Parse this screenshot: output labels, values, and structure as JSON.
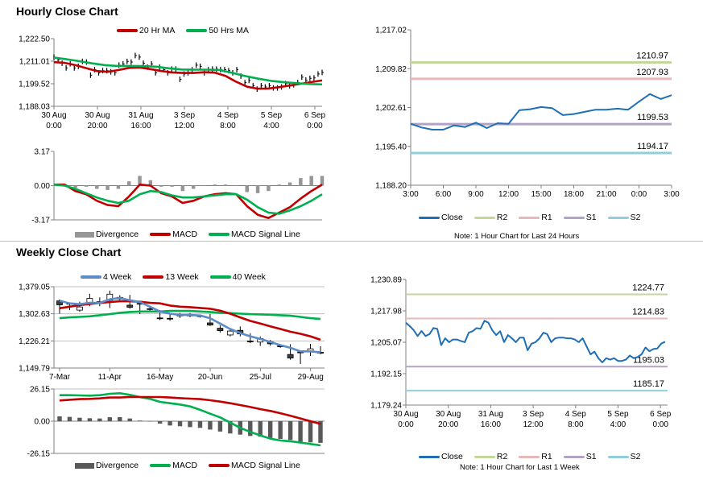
{
  "sections": {
    "hourly_title": "Hourly Close Chart",
    "weekly_title": "Weekly Close Chart"
  },
  "legends": {
    "hourly_price": [
      {
        "label": "20 Hr MA",
        "color": "#c00000"
      },
      {
        "label": "50 Hrs MA",
        "color": "#00b050"
      }
    ],
    "hourly_macd": [
      {
        "label": "Divergence",
        "color": "#969696"
      },
      {
        "label": "MACD",
        "color": "#c00000"
      },
      {
        "label": "MACD Signal Line",
        "color": "#00b050"
      }
    ],
    "pivot_24h": [
      {
        "label": "Close",
        "color": "#1f6fb5"
      },
      {
        "label": "R2",
        "color": "#c4d79b"
      },
      {
        "label": "R1",
        "color": "#e6b9b8"
      },
      {
        "label": "S1",
        "color": "#b3a2c7"
      },
      {
        "label": "S2",
        "color": "#92cddc"
      }
    ],
    "weekly_price": [
      {
        "label": "4 Week",
        "color": "#5b8cc8"
      },
      {
        "label": "13 Week",
        "color": "#c00000"
      },
      {
        "label": "40 Week",
        "color": "#00b050"
      }
    ],
    "weekly_macd": [
      {
        "label": "Divergence",
        "color": "#595959"
      },
      {
        "label": "MACD",
        "color": "#00b050"
      },
      {
        "label": "MACD Signal Line",
        "color": "#c00000"
      }
    ],
    "pivot_1w": [
      {
        "label": "Close",
        "color": "#1f6fb5"
      },
      {
        "label": "R2",
        "color": "#c4d79b"
      },
      {
        "label": "R1",
        "color": "#e6b9b8"
      },
      {
        "label": "S1",
        "color": "#b3a2c7"
      },
      {
        "label": "S2",
        "color": "#92cddc"
      }
    ]
  },
  "notes": {
    "pivot_24h": "Note: 1 Hour Chart for Last 24 Hours",
    "pivot_1w": "Note: 1 Hour Chart for Last 1 Week"
  },
  "chart_data": [
    {
      "id": "hourly_price",
      "type": "line",
      "ylim": [
        1188.03,
        1222.5
      ],
      "ytick_labels": [
        "1,188.03",
        "1,199.52",
        "1,211.01",
        "1,222.50"
      ],
      "xtick_labels": [
        [
          "30 Aug",
          "0:00"
        ],
        [
          "30 Aug",
          "20:00"
        ],
        [
          "31 Aug",
          "16:00"
        ],
        [
          "3 Sep",
          "12:00"
        ],
        [
          "4 Sep",
          "8:00"
        ],
        [
          "5 Sep",
          "4:00"
        ],
        [
          "6 Sep",
          "0:00"
        ]
      ],
      "series": [
        {
          "name": "Close",
          "kind": "ticks",
          "color": "#000000",
          "values": [
            1213.1,
            1211.7,
            1210.0,
            1207.6,
            1209.7,
            1207.6,
            1208.4,
            1210.9,
            1210.6,
            1203.9,
            1206.7,
            1205.1,
            1206.2,
            1206.2,
            1205.6,
            1205.1,
            1209.0,
            1209.6,
            1210.9,
            1210.6,
            1213.9,
            1213.1,
            1210.0,
            1208.0,
            1209.6,
            1205.1,
            1208.0,
            1206.7,
            1205.1,
            1207.0,
            1207.0,
            1201.8,
            1204.5,
            1205.1,
            1206.7,
            1209.0,
            1208.4,
            1205.1,
            1206.7,
            1207.0,
            1207.0,
            1206.7,
            1206.7,
            1206.2,
            1205.1,
            1206.7,
            1203.4,
            1200.1,
            1201.2,
            1198.5,
            1196.8,
            1198.5,
            1197.9,
            1198.5,
            1197.4,
            1197.4,
            1197.9,
            1199.6,
            1198.5,
            1199.0,
            1200.1,
            1202.9,
            1201.4,
            1202.3,
            1202.5,
            1204.5,
            1205.3
          ]
        },
        {
          "name": "20 Hr MA",
          "kind": "line",
          "color": "#c00000",
          "values": [
            1210.5,
            1210.2,
            1209.0,
            1207.5,
            1206.0,
            1205.6,
            1206.5,
            1207.6,
            1207.8,
            1207.0,
            1206.0,
            1205.3,
            1205.0,
            1205.0,
            1205.4,
            1205.2,
            1203.5,
            1200.5,
            1198.0,
            1197.0,
            1197.1,
            1197.8,
            1198.6,
            1199.5,
            1200.4,
            1201.2
          ]
        },
        {
          "name": "50 Hrs MA",
          "kind": "line",
          "color": "#00b050",
          "values": [
            1212.8,
            1212.0,
            1211.0,
            1209.9,
            1209.0,
            1208.6,
            1208.6,
            1208.5,
            1208.2,
            1207.4,
            1206.8,
            1206.7,
            1206.7,
            1206.5,
            1205.0,
            1203.4,
            1202.1,
            1201.0,
            1200.3,
            1199.8,
            1199.4,
            1199.2
          ]
        }
      ]
    },
    {
      "id": "hourly_macd",
      "type": "line",
      "ylim": [
        -3.17,
        3.17
      ],
      "ytick_labels": [
        "-3.17",
        "0.00",
        "3.17"
      ],
      "series": [
        {
          "name": "Divergence",
          "kind": "bars",
          "color": "#969696",
          "values": [
            0.0,
            0.1,
            -0.2,
            -0.1,
            -0.3,
            -0.4,
            -0.3,
            0.4,
            0.9,
            0.5,
            -0.1,
            -0.1,
            -0.5,
            -0.3,
            0.0,
            0.1,
            0.1,
            0.0,
            -0.6,
            -0.7,
            -0.5,
            0.1,
            0.3,
            0.7,
            0.9,
            0.9
          ]
        },
        {
          "name": "MACD",
          "kind": "line",
          "color": "#c00000",
          "values": [
            0.1,
            0.1,
            -0.5,
            -0.8,
            -1.4,
            -1.8,
            -1.9,
            -1.0,
            0.1,
            0.0,
            -0.7,
            -1.0,
            -1.6,
            -1.4,
            -1.0,
            -0.8,
            -0.7,
            -0.8,
            -1.9,
            -2.7,
            -3.0,
            -2.5,
            -2.0,
            -1.2,
            -0.5,
            0.1
          ]
        },
        {
          "name": "MACD Signal Line",
          "kind": "line",
          "color": "#00b050",
          "values": [
            0.1,
            0.0,
            -0.3,
            -0.7,
            -1.1,
            -1.4,
            -1.6,
            -1.4,
            -0.8,
            -0.5,
            -0.6,
            -0.9,
            -1.1,
            -1.1,
            -1.0,
            -0.9,
            -0.8,
            -0.8,
            -1.3,
            -2.0,
            -2.5,
            -2.6,
            -2.3,
            -1.9,
            -1.4,
            -0.8
          ]
        }
      ]
    },
    {
      "id": "pivot_24h",
      "type": "line",
      "ylim": [
        1188.2,
        1217.02
      ],
      "ytick_labels": [
        "1,188.20",
        "1,195.40",
        "1,202.61",
        "1,209.82",
        "1,217.02"
      ],
      "xtick_labels": [
        [
          "3:00"
        ],
        [
          "6:00"
        ],
        [
          "9:00"
        ],
        [
          "12:00"
        ],
        [
          "15:00"
        ],
        [
          "18:00"
        ],
        [
          "21:00"
        ],
        [
          "0:00"
        ],
        [
          "3:00"
        ]
      ],
      "series": [
        {
          "name": "R2",
          "kind": "hline",
          "color": "#c4d79b",
          "value": 1210.97,
          "label": "1210.97"
        },
        {
          "name": "R1",
          "kind": "hline",
          "color": "#e6b9b8",
          "value": 1207.93,
          "label": "1207.93"
        },
        {
          "name": "S1",
          "kind": "hline",
          "color": "#b3a2c7",
          "value": 1199.53,
          "label": "1199.53"
        },
        {
          "name": "S2",
          "kind": "hline",
          "color": "#92cddc",
          "value": 1194.17,
          "label": "1194.17"
        },
        {
          "name": "Close",
          "kind": "line",
          "color": "#1f6fb5",
          "values": [
            1199.6,
            1198.9,
            1198.5,
            1198.5,
            1199.3,
            1199.0,
            1199.8,
            1198.8,
            1199.7,
            1199.6,
            1202.1,
            1202.3,
            1202.7,
            1202.5,
            1201.2,
            1201.4,
            1201.8,
            1202.2,
            1202.2,
            1202.4,
            1202.2,
            1203.7,
            1205.1,
            1204.2,
            1204.9
          ]
        }
      ]
    },
    {
      "id": "weekly_price",
      "type": "line",
      "ylim": [
        1149.79,
        1379.05
      ],
      "ytick_labels": [
        "1,149.79",
        "1,226.21",
        "1,302.63",
        "1,379.05"
      ],
      "xtick_labels": [
        [
          "7-Mar"
        ],
        [
          "11-Apr"
        ],
        [
          "16-May"
        ],
        [
          "20-Jun"
        ],
        [
          "25-Jul"
        ],
        [
          "29-Aug"
        ]
      ],
      "series": [
        {
          "name": "Candles",
          "kind": "candles",
          "values": [
            [
              1339,
              1328,
              1343,
              1303
            ],
            [
              1332,
              1332,
              1333,
              1313
            ],
            [
              1313,
              1322,
              1337,
              1308
            ],
            [
              1334,
              1346,
              1359,
              1324
            ],
            [
              1337,
              1332,
              1349,
              1324
            ],
            [
              1341,
              1358,
              1368,
              1319
            ],
            [
              1344,
              1349,
              1355,
              1341
            ],
            [
              1327,
              1321,
              1356,
              1317
            ],
            [
              1332,
              1331,
              1333,
              1302
            ],
            [
              1317,
              1316,
              1324,
              1309
            ],
            [
              1291,
              1290,
              1313,
              1285
            ],
            [
              1290,
              1290,
              1301,
              1283
            ],
            [
              1299,
              1299,
              1305,
              1291
            ],
            [
              1299,
              1299,
              1305,
              1293
            ],
            [
              1297,
              1297,
              1300,
              1292
            ],
            [
              1277,
              1271,
              1302,
              1268
            ],
            [
              1262,
              1255,
              1270,
              1250
            ],
            [
              1243,
              1254,
              1260,
              1239
            ],
            [
              1256,
              1246,
              1267,
              1239
            ],
            [
              1226,
              1226,
              1248,
              1220
            ],
            [
              1223,
              1233,
              1239,
              1212
            ],
            [
              1224,
              1218,
              1229,
              1213
            ],
            [
              1212,
              1212,
              1217,
              1207
            ],
            [
              1188,
              1178,
              1217,
              1173
            ],
            [
              1195,
              1195,
              1197,
              1161
            ],
            [
              1197,
              1204,
              1218,
              1184
            ],
            [
              1194,
              1194,
              1211,
              1188
            ]
          ]
        },
        {
          "name": "40 Week",
          "kind": "line",
          "color": "#00b050",
          "values": [
            1290.2,
            1292.5,
            1294,
            1295.5,
            1298.6,
            1301.6,
            1305.4,
            1307.7,
            1309.2,
            1309.2,
            1309.2,
            1310.7,
            1310.7,
            1310.7,
            1309.2,
            1307.7,
            1305.4,
            1304.6,
            1303.1,
            1301.6,
            1300.9,
            1300.1,
            1298.6,
            1297,
            1294,
            1290.2,
            1288
          ]
        },
        {
          "name": "13 Week",
          "kind": "line",
          "color": "#c00000",
          "values": [
            1318.3,
            1322.8,
            1327.4,
            1330.4,
            1333.5,
            1335.7,
            1338,
            1338,
            1336.5,
            1333.5,
            1332,
            1325.9,
            1322.8,
            1321.3,
            1319.1,
            1316.8,
            1311.5,
            1303.1,
            1292.5,
            1282.6,
            1275,
            1267.4,
            1259.8,
            1252.2,
            1246.2,
            1239.3,
            1229.5
          ]
        },
        {
          "name": "4 Week",
          "kind": "line",
          "color": "#5b8cc8",
          "values": [
            1339.6,
            1332,
            1329.7,
            1333.5,
            1333.5,
            1343.4,
            1347.1,
            1341,
            1335.7,
            1322.8,
            1309.1,
            1303.1,
            1299.3,
            1299.3,
            1297.8,
            1290.2,
            1275,
            1259.8,
            1248.4,
            1239.3,
            1231.7,
            1223.4,
            1214.3,
            1206.7,
            1196.8,
            1196.8,
            1193.8
          ]
        }
      ]
    },
    {
      "id": "weekly_macd",
      "type": "line",
      "ylim": [
        -26.15,
        26.15
      ],
      "ytick_labels": [
        "-26.15",
        "0.00",
        "26.15"
      ],
      "series": [
        {
          "name": "Divergence",
          "kind": "bars",
          "color": "#595959",
          "values": [
            3.9,
            3.5,
            2.8,
            2.4,
            2.2,
            3.2,
            3.3,
            2.2,
            0.5,
            -0.3,
            -2.0,
            -3.5,
            -4.1,
            -4.8,
            -5.4,
            -6.8,
            -8.4,
            -10.0,
            -10.9,
            -12.0,
            -12.6,
            -13.5,
            -14.4,
            -15.2,
            -16.8,
            -17.2,
            -17.6
          ]
        },
        {
          "name": "MACD",
          "kind": "line",
          "color": "#00b050",
          "values": [
            21.1,
            21.1,
            20.9,
            20.7,
            21.1,
            22.2,
            22.7,
            21.4,
            19.6,
            18.1,
            15.7,
            14.6,
            13.5,
            12.0,
            9.2,
            6.1,
            3.1,
            -1.1,
            -5.4,
            -8.7,
            -11.5,
            -14.2,
            -15.7,
            -16.3,
            -17.4,
            -18.5,
            -19.6
          ]
        },
        {
          "name": "MACD Signal Line",
          "kind": "line",
          "color": "#c00000",
          "values": [
            16.8,
            17.4,
            17.9,
            18.1,
            18.5,
            19.2,
            19.2,
            19.6,
            19.6,
            19.6,
            19.6,
            19.2,
            18.7,
            18.3,
            17.9,
            17.0,
            15.9,
            14.6,
            13.1,
            11.5,
            9.8,
            8.3,
            6.5,
            4.4,
            2.2,
            0,
            -2.2
          ]
        }
      ]
    },
    {
      "id": "pivot_1w",
      "type": "line",
      "ylim": [
        1179.24,
        1230.89
      ],
      "ytick_labels": [
        "1,179.24",
        "1,192.15",
        "1,205.07",
        "1,217.98",
        "1,230.89"
      ],
      "xtick_labels": [
        [
          "30 Aug",
          "0:00"
        ],
        [
          "30 Aug",
          "20:00"
        ],
        [
          "31 Aug",
          "16:00"
        ],
        [
          "3 Sep",
          "12:00"
        ],
        [
          "4 Sep",
          "8:00"
        ],
        [
          "5 Sep",
          "4:00"
        ],
        [
          "6 Sep",
          "0:00"
        ]
      ],
      "series": [
        {
          "name": "R2",
          "kind": "hline",
          "color": "#c4d79b",
          "value": 1224.77,
          "label": "1224.77"
        },
        {
          "name": "R1",
          "kind": "hline",
          "color": "#e6b9b8",
          "value": 1214.83,
          "label": "1214.83"
        },
        {
          "name": "S1",
          "kind": "hline",
          "color": "#b3a2c7",
          "value": 1195.03,
          "label": "1195.03"
        },
        {
          "name": "S2",
          "kind": "hline",
          "color": "#92cddc",
          "value": 1185.17,
          "label": "1185.17"
        },
        {
          "name": "Close",
          "kind": "line",
          "color": "#1f6fb5",
          "values": [
            1213.1,
            1211.7,
            1210.0,
            1207.6,
            1209.7,
            1207.6,
            1208.4,
            1210.9,
            1210.6,
            1203.9,
            1206.7,
            1205.1,
            1206.2,
            1206.2,
            1205.6,
            1205.1,
            1209.0,
            1209.6,
            1210.9,
            1210.6,
            1213.9,
            1213.1,
            1210.0,
            1208.0,
            1209.6,
            1205.1,
            1208.0,
            1206.7,
            1205.1,
            1207.0,
            1207.0,
            1201.8,
            1204.5,
            1205.1,
            1206.7,
            1209.0,
            1208.4,
            1205.1,
            1206.7,
            1207.0,
            1207.0,
            1206.7,
            1206.7,
            1206.2,
            1205.1,
            1206.7,
            1203.4,
            1200.1,
            1201.2,
            1198.5,
            1196.8,
            1198.5,
            1197.9,
            1198.5,
            1197.4,
            1197.4,
            1197.9,
            1199.6,
            1198.5,
            1199.0,
            1200.1,
            1202.9,
            1201.4,
            1202.3,
            1202.5,
            1204.5,
            1205.3
          ]
        }
      ]
    }
  ]
}
